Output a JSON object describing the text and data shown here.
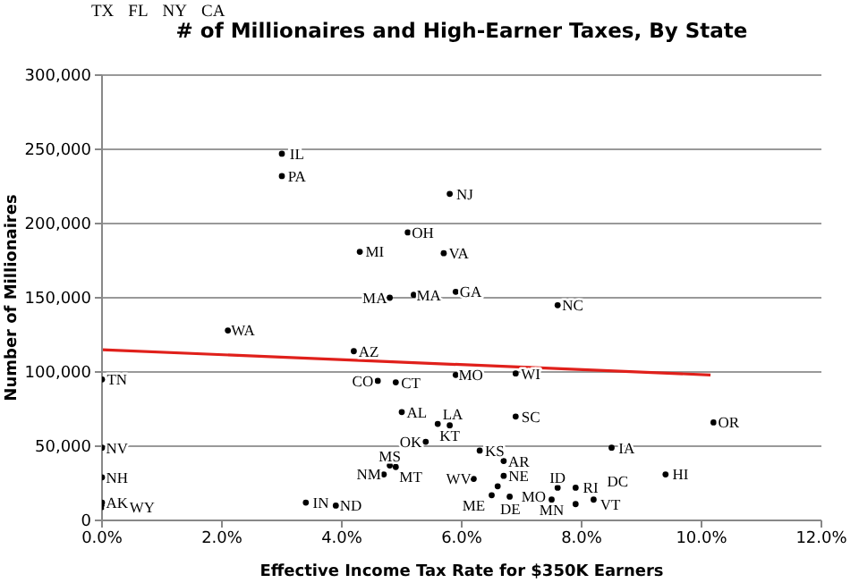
{
  "chart_data": {
    "type": "scatter",
    "title": "# of Millionaires and High-Earner Taxes, By State",
    "xlabel": "Effective Income Tax Rate for $350K Earners",
    "ylabel": "Number of Millionaires",
    "xlim": [
      0,
      12
    ],
    "xticks": [
      {
        "value": 0,
        "label": "0.0%"
      },
      {
        "value": 2,
        "label": "2.0%"
      },
      {
        "value": 4,
        "label": "4.0%"
      },
      {
        "value": 6,
        "label": "6.0%"
      },
      {
        "value": 8,
        "label": "8.0%"
      },
      {
        "value": 10,
        "label": "10.0%"
      },
      {
        "value": 12,
        "label": "12.0%"
      }
    ],
    "ylim": [
      0,
      300000
    ],
    "yticks": [
      {
        "value": 0,
        "label": "0"
      },
      {
        "value": 50000,
        "label": "50,000"
      },
      {
        "value": 100000,
        "label": "100,000"
      },
      {
        "value": 150000,
        "label": "150,000"
      },
      {
        "value": 200000,
        "label": "200,000"
      },
      {
        "value": 250000,
        "label": "250,000"
      },
      {
        "value": 300000,
        "label": "300,000"
      }
    ],
    "grid": "y",
    "legend": false,
    "annotations": [
      "TX",
      "FL",
      "NY",
      "CA"
    ],
    "series": [
      {
        "color": "#000000",
        "marker": "circle",
        "x": [
          3.0,
          3.0,
          5.8,
          5.1,
          4.3,
          5.7,
          4.8,
          5.2,
          5.9,
          7.6,
          2.1,
          4.2,
          5.9,
          6.9,
          0,
          4.6,
          4.9,
          5.0,
          6.9,
          5.6,
          5.8,
          10.2,
          5.4,
          6.3,
          8.5,
          0,
          6.7,
          0,
          4.8,
          4.9,
          4.7,
          9.4,
          6.2,
          6.7,
          6.6,
          6.5,
          6.8,
          7.6,
          7.9,
          7.5,
          7.9,
          8.2,
          3.4,
          3.9,
          0,
          0
        ],
        "values": [
          247000,
          232000,
          220000,
          194000,
          181000,
          180000,
          150000,
          152000,
          154000,
          145000,
          128000,
          114000,
          98000,
          99000,
          95000,
          94000,
          93000,
          73000,
          70000,
          65000,
          64000,
          66000,
          53000,
          47000,
          49000,
          49000,
          40000,
          29000,
          37000,
          36000,
          31000,
          31000,
          28000,
          30000,
          23000,
          17000,
          16000,
          22000,
          22000,
          14000,
          11000,
          14000,
          12000,
          10000,
          12000,
          9000
        ],
        "value_labels": [
          "IL",
          "PA",
          "NJ",
          "OH",
          "MI",
          "VA",
          "MA",
          "MA",
          "GA",
          "NC",
          "WA",
          "AZ",
          "MO",
          "WI",
          "TN",
          "CO",
          "CT",
          "AL",
          "SC",
          "LA",
          "KT",
          "OR",
          "OK",
          "KS",
          "IA",
          "NV",
          "AR",
          "NH",
          "MS",
          "MT",
          "NM",
          "HI",
          "WV",
          "NE",
          "ME",
          "DE",
          "MO",
          "ID",
          "RI",
          "MN",
          "VT",
          "DC",
          "IN",
          "ND",
          "AK",
          "WY"
        ]
      },
      {
        "type": "line",
        "color": "#e0201b",
        "x": [
          0,
          10.15
        ],
        "values": [
          115000,
          98000
        ]
      }
    ]
  }
}
